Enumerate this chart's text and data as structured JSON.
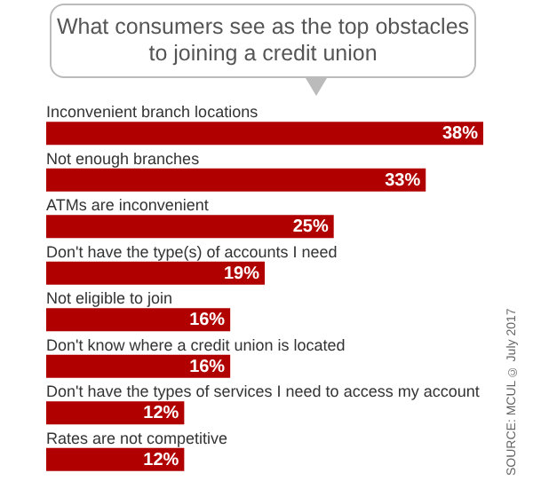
{
  "chart_data": {
    "type": "bar",
    "orientation": "horizontal",
    "title": "What consumers see as the top obstacles to joining a credit union",
    "categories": [
      "Inconvenient branch locations",
      "Not enough branches",
      "ATMs are inconvenient",
      "Don't have the type(s) of accounts I need",
      "Not eligible to join",
      "Don't know where a credit union is located",
      "Don't have the types of services I need to access my account",
      "Rates are not competitive"
    ],
    "values": [
      38,
      33,
      25,
      19,
      16,
      16,
      12,
      12
    ],
    "value_labels": [
      "38%",
      "33%",
      "25%",
      "19%",
      "16%",
      "16%",
      "12%",
      "12%"
    ],
    "color": "#b00000",
    "annotations": [
      "SOURCE: MCUL © July 2017"
    ]
  }
}
